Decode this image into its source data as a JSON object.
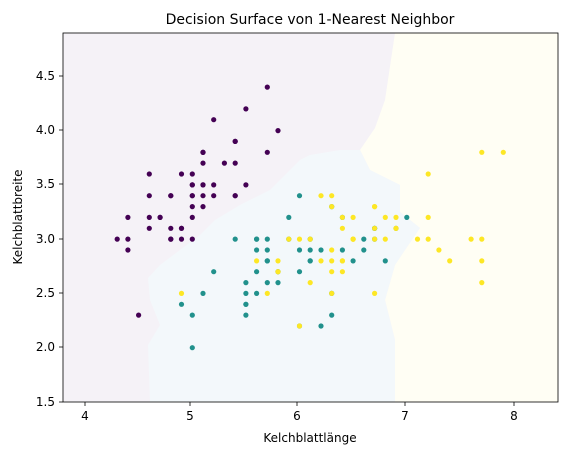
{
  "chart_data": {
    "type": "scatter",
    "title": "Decision Surface von 1-Nearest Neighbor",
    "xlabel": "Kelchblattlänge",
    "ylabel": "Kelchblattbreite",
    "xlim": [
      3.8,
      8.4
    ],
    "ylim": [
      1.5,
      4.9
    ],
    "xticks": [
      "4",
      "5",
      "6",
      "7",
      "8"
    ],
    "yticks": [
      "1.5",
      "2.0",
      "2.5",
      "3.0",
      "3.5",
      "4.0",
      "4.5"
    ],
    "grid": false,
    "legend": "none",
    "colors": {
      "setosa": "#440154",
      "versicolor": "#21918c",
      "virginica": "#fde725"
    },
    "region_colors": {
      "setosa": "#f5f2f7",
      "versicolor": "#f3f8fb",
      "virginica": "#fffef4"
    },
    "series": [
      {
        "color": "#440154",
        "points": [
          [
            5.1,
            3.5
          ],
          [
            4.9,
            3.0
          ],
          [
            4.7,
            3.2
          ],
          [
            4.6,
            3.1
          ],
          [
            5.0,
            3.6
          ],
          [
            5.4,
            3.9
          ],
          [
            4.6,
            3.4
          ],
          [
            5.0,
            3.4
          ],
          [
            4.4,
            2.9
          ],
          [
            4.9,
            3.1
          ],
          [
            5.4,
            3.7
          ],
          [
            4.8,
            3.4
          ],
          [
            4.8,
            3.0
          ],
          [
            4.3,
            3.0
          ],
          [
            5.8,
            4.0
          ],
          [
            5.7,
            4.4
          ],
          [
            5.4,
            3.9
          ],
          [
            5.1,
            3.5
          ],
          [
            5.7,
            3.8
          ],
          [
            5.1,
            3.8
          ],
          [
            5.4,
            3.4
          ],
          [
            5.1,
            3.7
          ],
          [
            4.6,
            3.6
          ],
          [
            5.1,
            3.3
          ],
          [
            4.8,
            3.4
          ],
          [
            5.0,
            3.0
          ],
          [
            5.0,
            3.4
          ],
          [
            5.2,
            3.5
          ],
          [
            5.2,
            3.4
          ],
          [
            4.7,
            3.2
          ],
          [
            4.8,
            3.1
          ],
          [
            5.4,
            3.4
          ],
          [
            5.2,
            4.1
          ],
          [
            5.5,
            4.2
          ],
          [
            4.9,
            3.1
          ],
          [
            5.0,
            3.2
          ],
          [
            5.5,
            3.5
          ],
          [
            4.9,
            3.6
          ],
          [
            4.4,
            3.0
          ],
          [
            5.1,
            3.4
          ],
          [
            5.0,
            3.5
          ],
          [
            4.5,
            2.3
          ],
          [
            4.4,
            3.2
          ],
          [
            5.0,
            3.5
          ],
          [
            5.1,
            3.8
          ],
          [
            4.8,
            3.0
          ],
          [
            5.1,
            3.8
          ],
          [
            4.6,
            3.2
          ],
          [
            5.3,
            3.7
          ],
          [
            5.0,
            3.3
          ]
        ]
      },
      {
        "color": "#21918c",
        "points": [
          [
            7.0,
            3.2
          ],
          [
            6.4,
            3.2
          ],
          [
            6.9,
            3.1
          ],
          [
            5.5,
            2.3
          ],
          [
            6.5,
            2.8
          ],
          [
            5.7,
            2.8
          ],
          [
            6.3,
            3.3
          ],
          [
            4.9,
            2.4
          ],
          [
            6.6,
            2.9
          ],
          [
            5.2,
            2.7
          ],
          [
            5.0,
            2.0
          ],
          [
            5.9,
            3.0
          ],
          [
            6.0,
            2.2
          ],
          [
            6.1,
            2.9
          ],
          [
            5.6,
            2.9
          ],
          [
            6.7,
            3.1
          ],
          [
            5.6,
            3.0
          ],
          [
            5.8,
            2.7
          ],
          [
            6.2,
            2.2
          ],
          [
            5.6,
            2.5
          ],
          [
            5.9,
            3.2
          ],
          [
            6.1,
            2.8
          ],
          [
            6.3,
            2.5
          ],
          [
            6.1,
            2.8
          ],
          [
            6.4,
            2.9
          ],
          [
            6.6,
            3.0
          ],
          [
            6.8,
            2.8
          ],
          [
            6.7,
            3.0
          ],
          [
            6.0,
            2.9
          ],
          [
            5.7,
            2.6
          ],
          [
            5.5,
            2.4
          ],
          [
            5.5,
            2.4
          ],
          [
            5.8,
            2.7
          ],
          [
            6.0,
            2.7
          ],
          [
            5.4,
            3.0
          ],
          [
            6.0,
            3.4
          ],
          [
            6.7,
            3.1
          ],
          [
            6.3,
            2.3
          ],
          [
            5.6,
            3.0
          ],
          [
            5.5,
            2.5
          ],
          [
            5.5,
            2.6
          ],
          [
            6.1,
            3.0
          ],
          [
            5.8,
            2.6
          ],
          [
            5.0,
            2.3
          ],
          [
            5.6,
            2.7
          ],
          [
            5.7,
            3.0
          ],
          [
            5.7,
            2.9
          ],
          [
            6.2,
            2.9
          ],
          [
            5.1,
            2.5
          ],
          [
            5.7,
            2.8
          ]
        ]
      },
      {
        "color": "#fde725",
        "points": [
          [
            6.3,
            3.3
          ],
          [
            5.8,
            2.7
          ],
          [
            7.1,
            3.0
          ],
          [
            6.3,
            2.9
          ],
          [
            6.5,
            3.0
          ],
          [
            7.6,
            3.0
          ],
          [
            4.9,
            2.5
          ],
          [
            7.3,
            2.9
          ],
          [
            6.7,
            2.5
          ],
          [
            7.2,
            3.6
          ],
          [
            6.5,
            3.2
          ],
          [
            6.4,
            2.7
          ],
          [
            6.8,
            3.0
          ],
          [
            5.7,
            2.5
          ],
          [
            5.8,
            2.8
          ],
          [
            6.4,
            3.2
          ],
          [
            6.5,
            3.0
          ],
          [
            7.7,
            3.8
          ],
          [
            7.7,
            2.6
          ],
          [
            6.0,
            2.2
          ],
          [
            6.9,
            3.2
          ],
          [
            5.6,
            2.8
          ],
          [
            7.7,
            2.8
          ],
          [
            6.3,
            2.7
          ],
          [
            6.7,
            3.3
          ],
          [
            7.2,
            3.2
          ],
          [
            6.2,
            2.8
          ],
          [
            6.1,
            3.0
          ],
          [
            6.4,
            2.8
          ],
          [
            7.2,
            3.0
          ],
          [
            7.4,
            2.8
          ],
          [
            7.9,
            3.8
          ],
          [
            6.4,
            2.8
          ],
          [
            6.3,
            2.8
          ],
          [
            6.1,
            2.6
          ],
          [
            7.7,
            3.0
          ],
          [
            6.3,
            3.4
          ],
          [
            6.4,
            3.1
          ],
          [
            6.0,
            3.0
          ],
          [
            6.9,
            3.1
          ],
          [
            6.7,
            3.1
          ],
          [
            6.9,
            3.1
          ],
          [
            5.8,
            2.7
          ],
          [
            6.8,
            3.2
          ],
          [
            6.7,
            3.3
          ],
          [
            6.7,
            3.0
          ],
          [
            6.3,
            2.5
          ],
          [
            6.5,
            3.0
          ],
          [
            6.2,
            3.4
          ],
          [
            5.9,
            3.0
          ]
        ]
      }
    ]
  }
}
